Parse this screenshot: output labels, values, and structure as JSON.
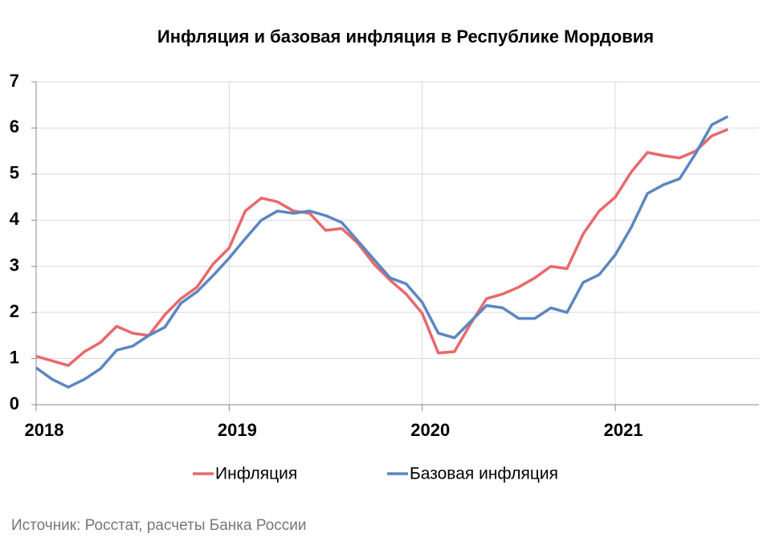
{
  "chart_data": {
    "type": "line",
    "title": "Инфляция и базовая инфляция в Республике Мордовия",
    "source": "Источник: Росстат, расчеты Банка России",
    "categories": [
      "2018",
      null,
      null,
      null,
      null,
      null,
      null,
      null,
      null,
      null,
      null,
      null,
      "2019",
      null,
      null,
      null,
      null,
      null,
      null,
      null,
      null,
      null,
      null,
      null,
      "2020",
      null,
      null,
      null,
      null,
      null,
      null,
      null,
      null,
      null,
      null,
      null,
      "2021",
      null,
      null,
      null,
      null,
      null,
      null,
      null
    ],
    "series": [
      {
        "name": "Инфляция",
        "color": "#e8696b",
        "values": [
          1.05,
          0.95,
          0.85,
          1.15,
          1.35,
          1.7,
          1.55,
          1.5,
          1.95,
          2.3,
          2.55,
          3.05,
          3.4,
          4.2,
          4.48,
          4.4,
          4.2,
          4.15,
          3.78,
          3.82,
          3.5,
          3.05,
          2.7,
          2.4,
          1.98,
          1.12,
          1.15,
          1.75,
          2.3,
          2.4,
          2.55,
          2.75,
          3.0,
          2.95,
          3.7,
          4.2,
          4.5,
          5.05,
          5.47,
          5.4,
          5.35,
          5.5,
          5.83,
          5.97
        ]
      },
      {
        "name": "Базовая инфляция",
        "color": "#5b87c0",
        "values": [
          0.8,
          0.55,
          0.38,
          0.55,
          0.78,
          1.18,
          1.27,
          1.5,
          1.68,
          2.2,
          2.45,
          2.8,
          3.18,
          3.6,
          4.0,
          4.2,
          4.15,
          4.2,
          4.1,
          3.95,
          3.55,
          3.15,
          2.75,
          2.62,
          2.22,
          1.55,
          1.45,
          1.8,
          2.15,
          2.1,
          1.87,
          1.87,
          2.1,
          2.0,
          2.65,
          2.82,
          3.25,
          3.85,
          4.58,
          4.77,
          4.9,
          5.45,
          6.07,
          6.25
        ]
      }
    ],
    "ylim": [
      0,
      7
    ],
    "yticks": [
      0,
      1,
      2,
      3,
      4,
      5,
      6,
      7
    ],
    "grid": true,
    "legend": "bottom"
  }
}
